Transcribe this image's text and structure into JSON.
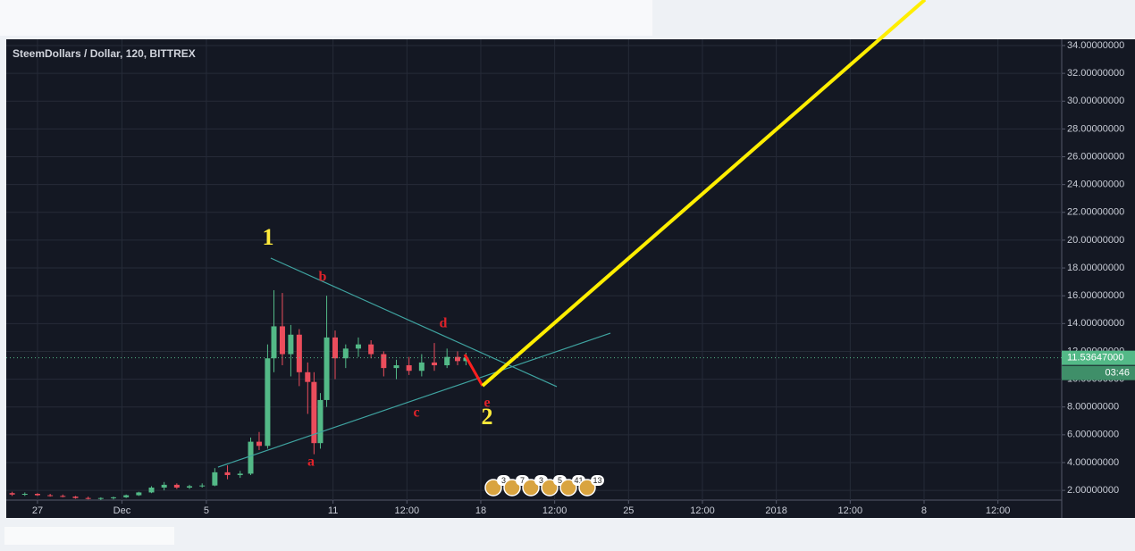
{
  "chart_data": {
    "type": "candlestick",
    "title": "SteemDollars / Dollar, 120, BITTREX",
    "up_color": "#53b987",
    "down_color": "#eb4d5c",
    "candles": {
      "x": [
        -1.2,
        -0.6,
        0,
        0.6,
        1.2,
        1.8,
        2.4,
        3,
        3.6,
        4.2,
        4.8,
        5.4,
        6,
        6.6,
        7.2,
        7.8,
        8.4,
        9,
        9.6,
        10.1,
        10.5,
        10.9,
        11.2,
        11.6,
        12.0,
        12.4,
        12.8,
        13.1,
        13.4,
        13.7,
        14.1,
        14.6,
        15.2,
        15.8,
        16.4,
        17.0,
        17.6,
        18.2,
        18.8,
        19.4,
        19.9,
        20.3
      ],
      "open": [
        1.8,
        1.7,
        1.75,
        1.65,
        1.6,
        1.55,
        1.45,
        1.4,
        1.45,
        1.5,
        1.65,
        1.85,
        2.2,
        2.4,
        2.2,
        2.3,
        2.35,
        3.3,
        3.1,
        3.2,
        5.5,
        5.2,
        11.5,
        13.8,
        11.8,
        13.2,
        10.5,
        9.8,
        5.4,
        8.5,
        13.0,
        11.5,
        12.2,
        12.5,
        11.8,
        10.8,
        11.0,
        10.6,
        11.2,
        11.0,
        11.6,
        11.3
      ],
      "high": [
        1.9,
        1.85,
        1.8,
        1.75,
        1.7,
        1.6,
        1.55,
        1.5,
        1.55,
        1.7,
        1.9,
        2.3,
        2.6,
        2.5,
        2.4,
        2.5,
        3.6,
        3.8,
        3.4,
        5.8,
        6.2,
        12.5,
        16.4,
        16.2,
        13.9,
        13.6,
        11.2,
        10.5,
        9.0,
        16.0,
        13.5,
        12.5,
        13.0,
        12.8,
        12.0,
        11.4,
        11.6,
        11.8,
        12.6,
        12.2,
        12.0,
        11.9
      ],
      "low": [
        1.6,
        1.6,
        1.6,
        1.55,
        1.5,
        1.4,
        1.35,
        1.3,
        1.35,
        1.45,
        1.6,
        1.8,
        2.0,
        2.1,
        2.1,
        2.2,
        2.3,
        2.8,
        2.9,
        3.1,
        4.9,
        5.0,
        10.5,
        11.0,
        10.2,
        9.5,
        7.5,
        4.6,
        5.0,
        8.0,
        10.0,
        10.8,
        11.6,
        11.5,
        10.2,
        10.0,
        10.3,
        10.2,
        10.6,
        10.8,
        11.0,
        11.0
      ],
      "close": [
        1.7,
        1.75,
        1.65,
        1.6,
        1.55,
        1.45,
        1.4,
        1.45,
        1.5,
        1.65,
        1.85,
        2.2,
        2.4,
        2.2,
        2.3,
        2.35,
        3.3,
        3.1,
        3.2,
        5.5,
        5.2,
        11.5,
        13.8,
        11.8,
        13.2,
        10.5,
        9.8,
        5.4,
        8.5,
        13.0,
        11.5,
        12.2,
        12.5,
        11.8,
        10.8,
        11.0,
        10.6,
        11.2,
        11.0,
        11.6,
        11.3,
        11.54
      ]
    },
    "drawings": [
      {
        "color": "#3fa3a0",
        "x": [
          11.05,
          24.6
        ],
        "y": [
          18.71,
          9.46
        ]
      },
      {
        "color": "#3fa3a0",
        "x": [
          8.55,
          27.14
        ],
        "y": [
          3.67,
          13.31
        ]
      },
      {
        "color": "#ff1f1f",
        "x": [
          20.24,
          21.08
        ],
        "y": [
          11.77,
          9.52
        ]
      },
      {
        "color": "#ffee00",
        "x": [
          21.08,
          42.04
        ],
        "y": [
          9.52,
          37.3
        ]
      }
    ],
    "annotations": [
      {
        "text": "1",
        "color": "#ffeb3b"
      },
      {
        "text": "2",
        "color": "#ffeb3b"
      },
      {
        "text": "a",
        "color": "#e0232a"
      },
      {
        "text": "b",
        "color": "#e0232a"
      },
      {
        "text": "c",
        "color": "#e0232a"
      },
      {
        "text": "d",
        "color": "#e0232a"
      },
      {
        "text": "e",
        "color": "#e0232a"
      }
    ],
    "last_price": {
      "value": 11.53647,
      "label": "11.53647000"
    },
    "countdown": "03:46",
    "events": [
      "3",
      "7",
      "3",
      "5",
      "41",
      "13"
    ],
    "xlim": [
      -1.48,
      48.52
    ],
    "xticks": [
      {
        "value": 0,
        "label": "27"
      },
      {
        "value": 4,
        "label": "Dec"
      },
      {
        "value": 8,
        "label": "5"
      },
      {
        "value": 14,
        "label": "11"
      },
      {
        "value": 17.5,
        "label": "12:00"
      },
      {
        "value": 21,
        "label": "18"
      },
      {
        "value": 24.5,
        "label": "12:00"
      },
      {
        "value": 28,
        "label": "25"
      },
      {
        "value": 31.5,
        "label": "12:00"
      },
      {
        "value": 35,
        "label": "2018"
      },
      {
        "value": 38.5,
        "label": "12:00"
      },
      {
        "value": 42,
        "label": "8"
      },
      {
        "value": 45.5,
        "label": "12:00"
      }
    ],
    "ylim": [
      1.3,
      34.45
    ],
    "yticks": [
      {
        "value": 2,
        "label": "2.00000000"
      },
      {
        "value": 4,
        "label": "4.00000000"
      },
      {
        "value": 6,
        "label": "6.00000000"
      },
      {
        "value": 8,
        "label": "8.00000000"
      },
      {
        "value": 10,
        "label": "10.00000000"
      },
      {
        "value": 12,
        "label": "12.00000000"
      },
      {
        "value": 14,
        "label": "14.00000000"
      },
      {
        "value": 16,
        "label": "16.00000000"
      },
      {
        "value": 18,
        "label": "18.00000000"
      },
      {
        "value": 20,
        "label": "20.00000000"
      },
      {
        "value": 22,
        "label": "22.00000000"
      },
      {
        "value": 24,
        "label": "24.00000000"
      },
      {
        "value": 26,
        "label": "26.00000000"
      },
      {
        "value": 28,
        "label": "28.00000000"
      },
      {
        "value": 30,
        "label": "30.00000000"
      },
      {
        "value": 32,
        "label": "32.00000000"
      },
      {
        "value": 34,
        "label": "34.00000000"
      }
    ],
    "grid": true
  }
}
